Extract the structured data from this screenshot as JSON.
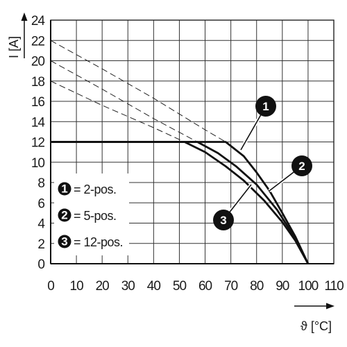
{
  "chart_data": {
    "type": "line",
    "title": "",
    "xlabel": "ϑ [°C]",
    "ylabel": "I [A]",
    "xlim": [
      0,
      110
    ],
    "ylim": [
      0,
      24
    ],
    "x_ticks": [
      "0",
      "10",
      "20",
      "30",
      "40",
      "50",
      "60",
      "70",
      "80",
      "90",
      "100",
      "110"
    ],
    "y_ticks": [
      "0",
      "2",
      "4",
      "6",
      "8",
      "10",
      "12",
      "14",
      "16",
      "18",
      "20",
      "22",
      "24"
    ],
    "grid": true,
    "legend_position": "bottom-left",
    "series": [
      {
        "name": "2-pos.",
        "marker": "1",
        "color": "#111111",
        "derating_points": [
          [
            0,
            12
          ],
          [
            68,
            12
          ],
          [
            75,
            10.6
          ],
          [
            80,
            9.0
          ],
          [
            85,
            7.2
          ],
          [
            90,
            5.0
          ],
          [
            95,
            2.7
          ],
          [
            100,
            0
          ]
        ],
        "base_points": [
          [
            0,
            22
          ],
          [
            20,
            19.2
          ],
          [
            40,
            16.3
          ],
          [
            60,
            13.2
          ],
          [
            68,
            12
          ]
        ]
      },
      {
        "name": "5-pos.",
        "marker": "2",
        "color": "#111111",
        "derating_points": [
          [
            0,
            12
          ],
          [
            57,
            12
          ],
          [
            65,
            10.9
          ],
          [
            72,
            9.6
          ],
          [
            80,
            7.8
          ],
          [
            88,
            5.3
          ],
          [
            95,
            2.5
          ],
          [
            100,
            0
          ]
        ],
        "base_points": [
          [
            0,
            20
          ],
          [
            20,
            17.2
          ],
          [
            40,
            14.3
          ],
          [
            57,
            12
          ]
        ]
      },
      {
        "name": "12-pos.",
        "marker": "3",
        "color": "#111111",
        "derating_points": [
          [
            0,
            12
          ],
          [
            52,
            12
          ],
          [
            60,
            11.0
          ],
          [
            68,
            9.6
          ],
          [
            75,
            8.2
          ],
          [
            83,
            6.2
          ],
          [
            90,
            4.1
          ],
          [
            95,
            2.3
          ],
          [
            100,
            0
          ]
        ],
        "base_points": [
          [
            0,
            18
          ],
          [
            20,
            15.6
          ],
          [
            40,
            13.4
          ],
          [
            52,
            12
          ]
        ]
      }
    ],
    "legend": [
      {
        "marker": "1",
        "label": "= 2-pos."
      },
      {
        "marker": "2",
        "label": "= 5-pos."
      },
      {
        "marker": "3",
        "label": "= 12-pos."
      }
    ]
  }
}
